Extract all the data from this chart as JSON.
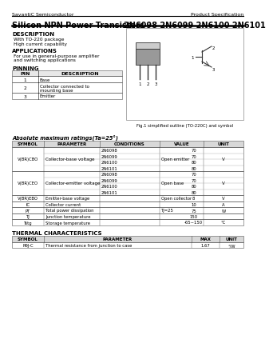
{
  "header_company": "SavantiC Semiconductor",
  "header_right": "Product Specification",
  "title_left": "Silicon NPN Power Transistors",
  "title_right": "2N6098 2N6099 2N6100 2N6101",
  "desc_title": "DESCRIPTION",
  "desc_items": [
    "With TO-220 package",
    "High current capability"
  ],
  "app_title": "APPLICATIONS",
  "app_items": [
    "For use in general-purpose amplifier",
    "and switching applications"
  ],
  "pin_title": "PINNING",
  "pin_headers": [
    "PIN",
    "DESCRIPTION"
  ],
  "pin_rows": [
    [
      "1",
      "Base"
    ],
    [
      "2",
      "Collector connected to\nmounting base"
    ],
    [
      "3",
      "Emitter"
    ]
  ],
  "fig_caption": "Fig.1 simplified outline (TO-220C) and symbol",
  "abs_title": "Absolute maximum ratings(Ta=25°)",
  "abs_headers": [
    "SYMBOL",
    "PARAMETER",
    "CONDITIONS",
    "VALUE",
    "UNIT"
  ],
  "vcbo_symbol": "V(BR)CBO",
  "vcbo_param": "Collector-base voltage",
  "vcbo_cond": "Open emitter",
  "vcbo_rows": [
    "2N6098",
    "2N6099",
    "2N6100",
    "2N6101"
  ],
  "vcbo_values": [
    "70",
    "70",
    "80",
    "80"
  ],
  "vcbo_unit": "V",
  "vceo_symbol": "V(BR)CEO",
  "vceo_param": "Collector-emitter voltage",
  "vceo_cond": "Open base",
  "vceo_rows": [
    "2N6098",
    "2N6099",
    "2N6100",
    "2N6101"
  ],
  "vceo_values": [
    "70",
    "70",
    "80",
    "80"
  ],
  "vceo_unit": "V",
  "single_rows": [
    [
      "V(BR)EBO",
      "Emitter-base voltage",
      "Open collector",
      "8",
      "V"
    ],
    [
      "IC",
      "Collector current",
      "",
      "10",
      "A"
    ],
    [
      "PT",
      "Total power dissipation",
      "TJ=25",
      "75",
      "W"
    ],
    [
      "TJ",
      "Junction temperature",
      "",
      "150",
      ""
    ],
    [
      "Tstg",
      "Storage temperature",
      "",
      "-65~150",
      "°C"
    ]
  ],
  "thermal_title": "THERMAL CHARACTERISTICS",
  "thermal_headers": [
    "SYMBOL",
    "PARAMETER",
    "MAX",
    "UNIT"
  ],
  "thermal_rows": [
    [
      "RθJ-C",
      "Thermal resistance from junction to case",
      "1.67",
      "°/W"
    ]
  ],
  "bg_color": "#f5f5f0",
  "white": "#ffffff",
  "text_color": "#111111",
  "gray_header": "#dddddd"
}
